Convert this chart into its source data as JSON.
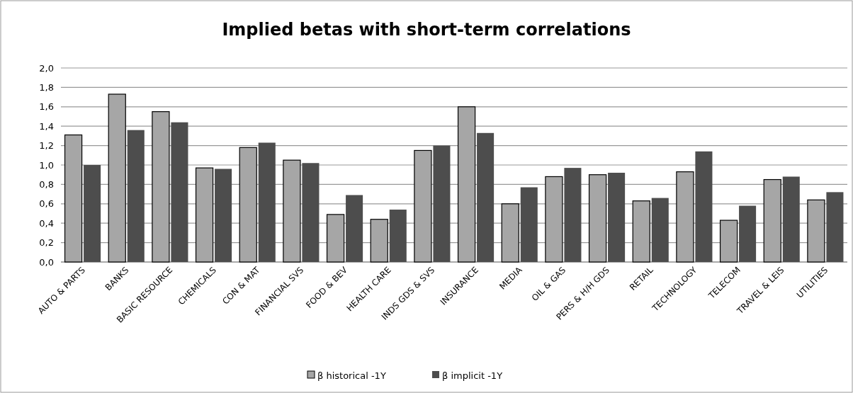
{
  "chart_data": {
    "type": "bar",
    "title": "Implied betas with short-term correlations",
    "categories": [
      "AUTO & PARTS",
      "BANKS",
      "BASIC RESOURCE",
      "CHEMICALS",
      "CON & MAT",
      "FINANCIAL SVS",
      "FOOD & BEV",
      "HEALTH CARE",
      "INDS GDS & SVS",
      "INSURANCE",
      "MEDIA",
      "OIL & GAS",
      "PERS & H/H GDS",
      "RETAIL",
      "TECHNOLOGY",
      "TELECOM",
      "TRAVEL & LEIS",
      "UTILITIES"
    ],
    "series": [
      {
        "name": "β  historical -1Y",
        "color": "#a6a6a6",
        "values": [
          1.31,
          1.73,
          1.55,
          0.97,
          1.18,
          1.05,
          0.49,
          0.44,
          1.15,
          1.6,
          0.6,
          0.88,
          0.9,
          0.63,
          0.93,
          0.43,
          0.85,
          0.64
        ]
      },
      {
        "name": "β  implicit -1Y",
        "color": "#4d4d4d",
        "values": [
          1.0,
          1.36,
          1.44,
          0.96,
          1.23,
          1.02,
          0.69,
          0.54,
          1.2,
          1.33,
          0.77,
          0.97,
          0.92,
          0.66,
          1.14,
          0.58,
          0.88,
          0.72
        ]
      }
    ],
    "ylim": [
      0,
      2
    ],
    "yticks": [
      {
        "value": 0,
        "label": "0,0"
      },
      {
        "value": 0.2,
        "label": "0,2"
      },
      {
        "value": 0.4,
        "label": "0,4"
      },
      {
        "value": 0.6,
        "label": "0,6"
      },
      {
        "value": 0.8,
        "label": "0,8"
      },
      {
        "value": 1,
        "label": "1,0"
      },
      {
        "value": 1.2,
        "label": "1,2"
      },
      {
        "value": 1.4,
        "label": "1,4"
      },
      {
        "value": 1.6,
        "label": "1,6"
      },
      {
        "value": 1.8,
        "label": "1,8"
      },
      {
        "value": 2,
        "label": "2,0"
      }
    ],
    "grid": "y",
    "legend": "bottom"
  }
}
